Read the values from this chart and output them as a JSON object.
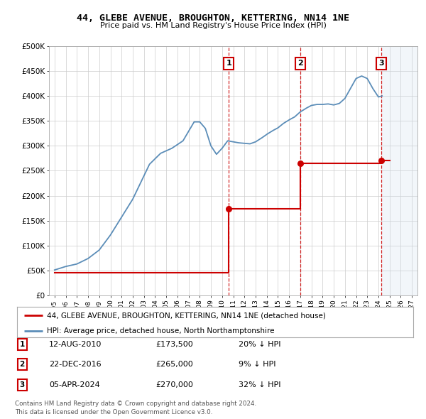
{
  "title": "44, GLEBE AVENUE, BROUGHTON, KETTERING, NN14 1NE",
  "subtitle": "Price paid vs. HM Land Registry's House Price Index (HPI)",
  "legend_line1": "44, GLEBE AVENUE, BROUGHTON, KETTERING, NN14 1NE (detached house)",
  "legend_line2": "HPI: Average price, detached house, North Northamptonshire",
  "footnote1": "Contains HM Land Registry data © Crown copyright and database right 2024.",
  "footnote2": "This data is licensed under the Open Government Licence v3.0.",
  "sale_color": "#cc0000",
  "hpi_color": "#5b8db8",
  "background_color": "#ffffff",
  "grid_color": "#cccccc",
  "shaded_color": "#ccdded",
  "sales": [
    {
      "label": "1",
      "date_str": "12-AUG-2010",
      "date_x": 2010.61,
      "price": 173500,
      "hpi_pct": "20% ↓ HPI"
    },
    {
      "label": "2",
      "date_str": "22-DEC-2016",
      "date_x": 2016.98,
      "price": 265000,
      "hpi_pct": "9% ↓ HPI"
    },
    {
      "label": "3",
      "date_str": "05-APR-2024",
      "date_x": 2024.26,
      "price": 270000,
      "hpi_pct": "32% ↓ HPI"
    }
  ],
  "ylim": [
    0,
    500000
  ],
  "xlim": [
    1994.5,
    2027.5
  ],
  "yticks": [
    0,
    50000,
    100000,
    150000,
    200000,
    250000,
    300000,
    350000,
    400000,
    450000,
    500000
  ],
  "ytick_labels": [
    "£0",
    "£50K",
    "£100K",
    "£150K",
    "£200K",
    "£250K",
    "£300K",
    "£350K",
    "£400K",
    "£450K",
    "£500K"
  ],
  "xticks": [
    1995,
    1996,
    1997,
    1998,
    1999,
    2000,
    2001,
    2002,
    2003,
    2004,
    2005,
    2006,
    2007,
    2008,
    2009,
    2010,
    2011,
    2012,
    2013,
    2014,
    2015,
    2016,
    2017,
    2018,
    2019,
    2020,
    2021,
    2022,
    2023,
    2024,
    2025,
    2026,
    2027
  ],
  "property_data_x": [
    1995.0,
    2010.61,
    2010.61,
    2016.98,
    2016.98,
    2024.26,
    2024.26,
    2025.0
  ],
  "property_data_y": [
    46000,
    46000,
    173500,
    173500,
    265000,
    265000,
    270000,
    270000
  ]
}
